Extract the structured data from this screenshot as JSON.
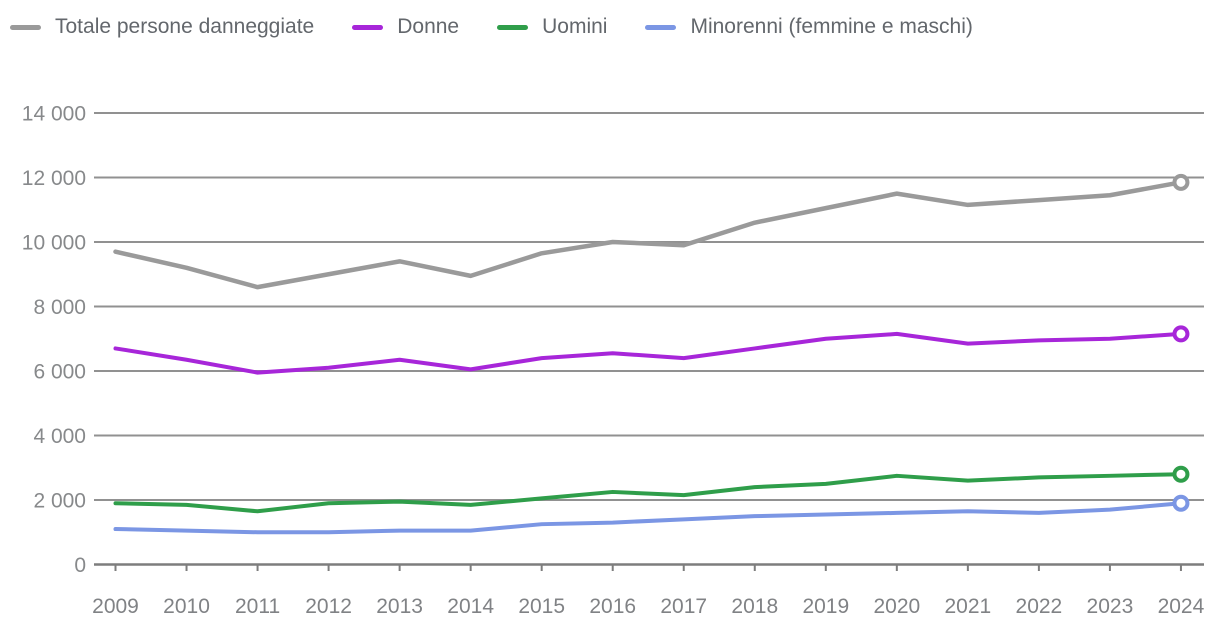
{
  "chart_data": {
    "type": "line",
    "title": "",
    "xlabel": "",
    "ylabel": "",
    "categories": [
      "2009",
      "2010",
      "2011",
      "2012",
      "2013",
      "2014",
      "2015",
      "2016",
      "2017",
      "2018",
      "2019",
      "2020",
      "2021",
      "2022",
      "2023",
      "2024"
    ],
    "series": [
      {
        "name": "Totale persone danneggiate",
        "color": "#9a9a9a",
        "line_width": 4.5,
        "end_marker": "open-circle",
        "values": [
          9700,
          9200,
          8600,
          9000,
          9400,
          8950,
          9650,
          10000,
          9900,
          10600,
          11050,
          11500,
          11150,
          11300,
          11450,
          11850
        ]
      },
      {
        "name": "Donne",
        "color": "#a726d9",
        "line_width": 4,
        "end_marker": "open-circle",
        "values": [
          6700,
          6350,
          5950,
          6100,
          6350,
          6050,
          6400,
          6550,
          6400,
          6700,
          7000,
          7150,
          6850,
          6950,
          7000,
          7150
        ]
      },
      {
        "name": "Uomini",
        "color": "#2f9e4a",
        "line_width": 4,
        "end_marker": "open-circle",
        "values": [
          1900,
          1850,
          1650,
          1900,
          1950,
          1850,
          2050,
          2250,
          2150,
          2400,
          2500,
          2750,
          2600,
          2700,
          2750,
          2800
        ]
      },
      {
        "name": "Minorenni (femmine e maschi)",
        "color": "#7b96e4",
        "line_width": 4,
        "end_marker": "open-circle",
        "values": [
          1100,
          1050,
          1000,
          1000,
          1050,
          1050,
          1250,
          1300,
          1400,
          1500,
          1550,
          1600,
          1650,
          1600,
          1700,
          1900
        ]
      }
    ],
    "ylim": [
      0,
      14000
    ],
    "yticks": [
      0,
      2000,
      4000,
      6000,
      8000,
      10000,
      12000,
      14000
    ],
    "ytick_labels": [
      "0",
      "2 000",
      "4 000",
      "6 000",
      "8 000",
      "10 000",
      "12 000",
      "14 000"
    ],
    "grid": "horizontal",
    "legend_position": "top-left"
  },
  "colors": {
    "gridline": "#919191",
    "axis_line": "#7d7d7d",
    "ytick_text": "#87898b",
    "xtick_text": "#808285",
    "legend_text": "#63676c",
    "background": "#ffffff"
  }
}
